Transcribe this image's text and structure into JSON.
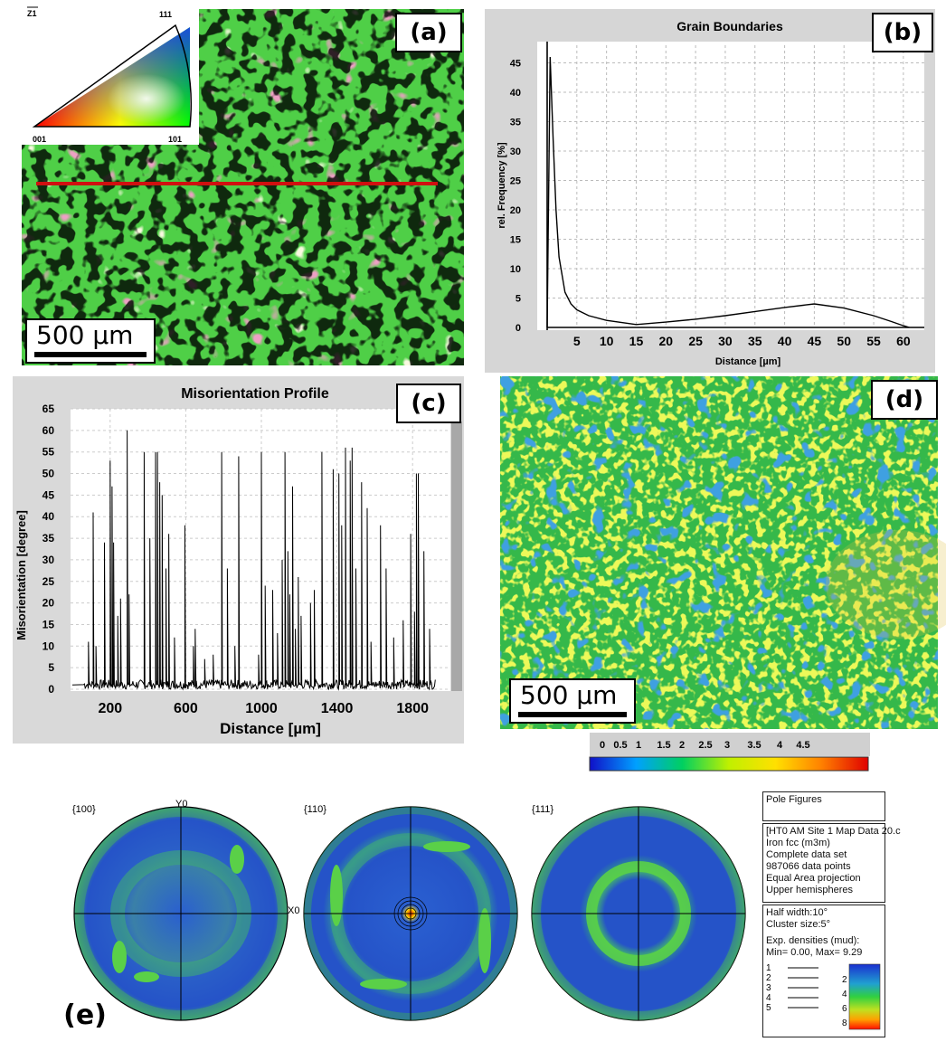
{
  "panels": {
    "a": {
      "label": "(a)",
      "scale": "500 μm",
      "ipf": {
        "axis": "Z1",
        "v001": "001",
        "v101": "101",
        "v111": "111"
      }
    },
    "b": {
      "label": "(b)"
    },
    "c": {
      "label": "(c)"
    },
    "d": {
      "label": "(d)",
      "scale": "500 μm",
      "colorbar": {
        "ticks": [
          "0",
          "0.5",
          "1",
          "1.5",
          "2",
          "2.5",
          "3",
          "3.5",
          "4",
          "4.5"
        ],
        "colors": [
          "#1010c8",
          "#00a0ff",
          "#00d060",
          "#c0f000",
          "#ffe000",
          "#ff8000",
          "#e00000"
        ]
      }
    },
    "e": {
      "label": "(e)",
      "pole_labels": [
        "{100}",
        "{110}",
        "{111}"
      ],
      "axis_y": "Y0",
      "axis_x": "X0",
      "info_title": "Pole Figures",
      "info_lines": [
        "[HT0 AM Site 1 Map Data 20.c",
        "Iron fcc (m3m)",
        "Complete data set",
        "987066 data points",
        "Equal Area projection",
        "Upper hemispheres"
      ],
      "info2_lines": [
        "Half width:10°",
        "Cluster size:5°"
      ],
      "densities_title": "Exp. densities (mud):",
      "densities_range": "Min= 0.00, Max= 9.29",
      "contour_levels": [
        "1",
        "2",
        "3",
        "4",
        "5"
      ],
      "legend_ticks": [
        "2",
        "4",
        "6",
        "8"
      ]
    }
  },
  "chart_data": [
    {
      "type": "line",
      "title": "Grain Boundaries",
      "xlabel": "Distance [µm]",
      "ylabel": "rel. Frequency [%]",
      "xlim": [
        -1,
        62
      ],
      "ylim": [
        0,
        48
      ],
      "xticks": [
        5,
        10,
        15,
        20,
        25,
        30,
        35,
        40,
        45,
        50,
        55,
        60
      ],
      "yticks": [
        0,
        5,
        10,
        15,
        20,
        25,
        30,
        35,
        40,
        45
      ],
      "grid": true,
      "x": [
        0,
        0.5,
        1,
        1.5,
        2,
        3,
        4,
        5,
        7,
        10,
        15,
        20,
        25,
        30,
        35,
        40,
        45,
        50,
        55,
        58,
        60,
        61
      ],
      "y": [
        0,
        46,
        32,
        20,
        12,
        6,
        4,
        3,
        2,
        1.2,
        0.5,
        0.9,
        1.4,
        2,
        2.7,
        3.4,
        4,
        3.3,
        2,
        1,
        0.3,
        0
      ],
      "color": "#000000"
    },
    {
      "type": "line",
      "title": "Misorientation Profile",
      "xlabel": "Distance [µm]",
      "ylabel": "Misorientation [degree]",
      "xlim": [
        0,
        2000
      ],
      "ylim": [
        0,
        65
      ],
      "xticks": [
        200,
        600,
        1000,
        1400,
        1800
      ],
      "yticks": [
        0,
        5,
        10,
        15,
        20,
        25,
        30,
        35,
        40,
        45,
        50,
        55,
        60,
        65
      ],
      "grid": true,
      "color": "#000000",
      "peaks_x": [
        85,
        110,
        125,
        170,
        200,
        210,
        218,
        240,
        255,
        290,
        300,
        380,
        410,
        440,
        450,
        462,
        475,
        495,
        510,
        540,
        595,
        640,
        650,
        700,
        745,
        790,
        820,
        860,
        880,
        985,
        1000,
        1020,
        1060,
        1085,
        1110,
        1125,
        1140,
        1150,
        1165,
        1180,
        1195,
        1210,
        1260,
        1280,
        1320,
        1380,
        1410,
        1425,
        1445,
        1470,
        1480,
        1500,
        1530,
        1560,
        1580,
        1630,
        1660,
        1700,
        1750,
        1790,
        1810,
        1820,
        1830,
        1860,
        1890
      ],
      "peaks_y": [
        11,
        41,
        10,
        34,
        53,
        47,
        34,
        17,
        21,
        60,
        22,
        55,
        35,
        55,
        55,
        48,
        45,
        28,
        36,
        12,
        38,
        10,
        14,
        7,
        8,
        55,
        28,
        10,
        54,
        8,
        55,
        24,
        23,
        13,
        30,
        55,
        32,
        22,
        47,
        14,
        26,
        17,
        20,
        23,
        55,
        51,
        50,
        38,
        56,
        53,
        56,
        28,
        48,
        42,
        11,
        38,
        28,
        12,
        16,
        36,
        18,
        50,
        50,
        32,
        14
      ]
    }
  ]
}
